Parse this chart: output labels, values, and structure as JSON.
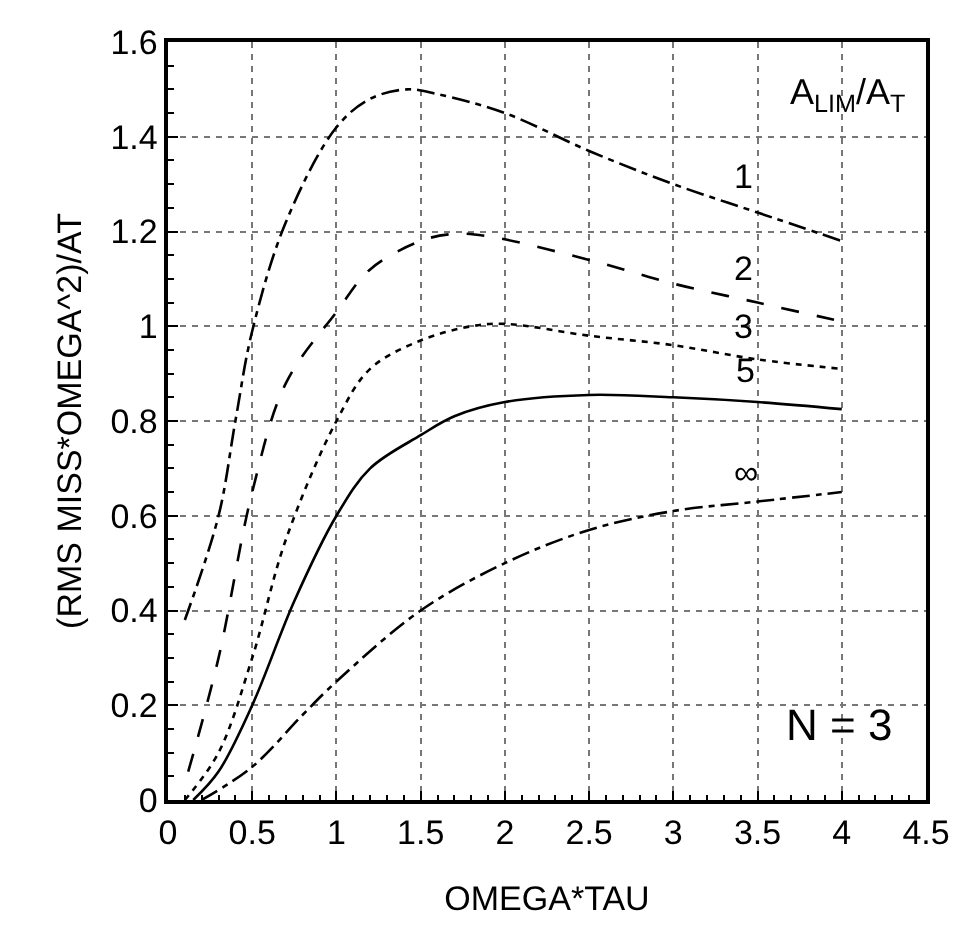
{
  "chart_data": {
    "type": "line",
    "xlabel": "OMEGA*TAU",
    "ylabel": "(RMS MISS*OMEGA^2)/AT",
    "legend_title": "A$_{LIM}$/A$_{T}$",
    "annotations": [
      "N = 3"
    ],
    "xlim": [
      0,
      4.5
    ],
    "xticks": [
      0,
      0.5,
      1,
      1.5,
      2,
      2.5,
      3,
      3.5,
      4,
      4.5
    ],
    "ylim": [
      0,
      1.6
    ],
    "yticks": [
      0,
      0.2,
      0.4,
      0.6,
      0.8,
      1,
      1.2,
      1.4,
      1.6
    ],
    "grid": true,
    "legend": false,
    "marker": "none",
    "series": [
      {
        "name": "1",
        "color": "#000000",
        "line_style": "dashdot",
        "x": [
          0.1,
          0.3,
          0.4,
          0.5,
          0.7,
          1.0,
          1.2,
          1.42,
          1.6,
          2.0,
          2.5,
          3.0,
          3.5,
          4.0
        ],
        "values": [
          0.38,
          0.6,
          0.8,
          0.99,
          1.22,
          1.42,
          1.48,
          1.5,
          1.49,
          1.45,
          1.37,
          1.3,
          1.24,
          1.18
        ]
      },
      {
        "name": "2",
        "color": "#000000",
        "line_style": "dashed",
        "x": [
          0.12,
          0.3,
          0.5,
          0.7,
          1.0,
          1.2,
          1.5,
          1.7,
          1.9,
          2.5,
          3.0,
          3.5,
          4.0
        ],
        "values": [
          0.06,
          0.3,
          0.65,
          0.88,
          1.03,
          1.12,
          1.18,
          1.195,
          1.19,
          1.14,
          1.09,
          1.05,
          1.01
        ]
      },
      {
        "name": "3",
        "color": "#000000",
        "line_style": "dotted",
        "x": [
          0.1,
          0.3,
          0.5,
          0.7,
          1.0,
          1.2,
          1.5,
          1.8,
          2.0,
          2.5,
          3.0,
          3.5,
          4.0
        ],
        "values": [
          0,
          0.1,
          0.3,
          0.55,
          0.8,
          0.91,
          0.97,
          1.0,
          1.005,
          0.98,
          0.96,
          0.93,
          0.91
        ]
      },
      {
        "name": "5",
        "color": "#000000",
        "line_style": "solid",
        "x": [
          0.15,
          0.3,
          0.5,
          0.75,
          1.0,
          1.2,
          1.5,
          1.7,
          2.0,
          2.5,
          3.0,
          3.5,
          4.0
        ],
        "values": [
          0,
          0.06,
          0.2,
          0.42,
          0.6,
          0.7,
          0.77,
          0.81,
          0.84,
          0.855,
          0.85,
          0.84,
          0.825
        ]
      },
      {
        "name": "∞",
        "color": "#000000",
        "line_style": "dashdot",
        "x": [
          0.2,
          0.5,
          0.8,
          1.0,
          1.5,
          2.0,
          2.5,
          3.0,
          3.5,
          4.0
        ],
        "values": [
          0,
          0.07,
          0.18,
          0.25,
          0.4,
          0.5,
          0.57,
          0.61,
          0.63,
          0.65
        ]
      }
    ]
  }
}
